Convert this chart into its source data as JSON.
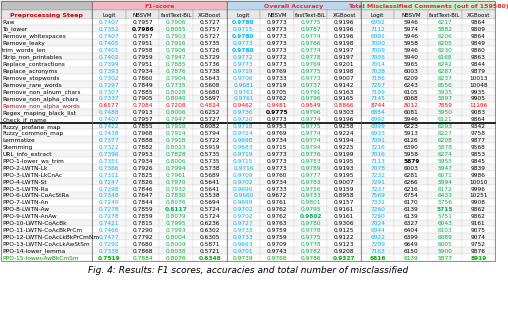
{
  "title": "Fig. 4: Results: F1 scores, accuracies and total number of misclassified",
  "header_groups": [
    {
      "label": "F1-score",
      "color": "#f2b8c6",
      "text_color": "#e03030"
    },
    {
      "label": "Overall Accuracy",
      "color": "#bdd7ee",
      "text_color": "#e03030"
    },
    {
      "label": "Total Misclassified Comments (out of 159580)",
      "color": "#c6efce",
      "text_color": "#e03030"
    }
  ],
  "col_headers": [
    "Logit",
    "NBSVM",
    "fastText-BiL",
    "XGBoost",
    "Logit",
    "NBSVM",
    "fastText-BiL",
    "XGBoost",
    "Logit",
    "NBSVM",
    "fastText-BiL",
    "XGBoost"
  ],
  "row_label": "Preprocessing Steep",
  "row_label_color": "#cc0000",
  "rows": [
    {
      "name": "Raw",
      "highlight": true,
      "values": [
        "0.7407",
        "0.7957",
        "0.7906",
        "0.5727",
        "0.9780",
        "0.9773",
        "0.9775",
        "0.9196",
        "6992",
        "5946",
        "6217",
        "9864"
      ]
    },
    {
      "name": "To_lower",
      "highlight": false,
      "values": [
        "0.7352",
        "0.7986",
        "0.8055",
        "0.5757",
        "0.9715",
        "0.9773",
        "0.9787",
        "0.9196",
        "7112",
        "5974",
        "5882",
        "9809"
      ]
    },
    {
      "name": "Remove_whitespaces",
      "highlight": false,
      "values": [
        "0.7407",
        "0.7957",
        "0.7903",
        "0.5727",
        "0.9780",
        "0.9773",
        "0.9774",
        "0.9196",
        "6992",
        "5946",
        "6206",
        "9864"
      ]
    },
    {
      "name": "Remove_leaky",
      "highlight": false,
      "values": [
        "0.7405",
        "0.7951",
        "0.7916",
        "0.5735",
        "0.9773",
        "0.9773",
        "0.9766",
        "0.9198",
        "7000",
        "5958",
        "6205",
        "9849"
      ]
    },
    {
      "name": "trim_words_len",
      "highlight": false,
      "values": [
        "0.7401",
        "0.7958",
        "0.7906",
        "0.5726",
        "0.9780",
        "0.9773",
        "0.9774",
        "0.9197",
        "7009",
        "5946",
        "6230",
        "9860"
      ]
    },
    {
      "name": "Strip_non_printables",
      "highlight": false,
      "values": [
        "0.7402",
        "0.7959",
        "0.7947",
        "0.5729",
        "0.9772",
        "0.9772",
        "0.9778",
        "0.9197",
        "7005",
        "5940",
        "6168",
        "9863"
      ]
    },
    {
      "name": "Replace_contractions",
      "highlight": false,
      "values": [
        "0.7399",
        "0.7951",
        "0.7885",
        "0.5736",
        "0.9773",
        "0.9773",
        "0.9769",
        "0.9201",
        "7014",
        "5965",
        "6242",
        "9844"
      ]
    },
    {
      "name": "Replace_acronyms",
      "highlight": false,
      "values": [
        "0.7393",
        "0.7934",
        "0.7876",
        "0.5738",
        "0.9719",
        "0.9769",
        "0.9775",
        "0.9198",
        "7038",
        "6003",
        "6287",
        "9879"
      ]
    },
    {
      "name": "Remove_stopwords",
      "highlight": false,
      "values": [
        "0.7302",
        "0.7860",
        "0.7904",
        "0.5643",
        "0.9706",
        "0.9733",
        "0.9773",
        "0.9007",
        "7186",
        "6209",
        "6237",
        "10013"
      ]
    },
    {
      "name": "Remove_rare_words",
      "highlight": false,
      "values": [
        "0.7297",
        "0.7849",
        "0.7735",
        "0.5608",
        "0.9681",
        "0.9719",
        "0.9737",
        "0.9142",
        "7257",
        "6243",
        "6556",
        "10048"
      ]
    },
    {
      "name": "Remove_non_alnum_chars",
      "highlight": false,
      "values": [
        "0.7307",
        "0.7885",
        "0.8028",
        "0.5680",
        "0.9761",
        "0.9705",
        "0.9791",
        "0.9163",
        "7199",
        "6105",
        "5935",
        "9935"
      ]
    },
    {
      "name": "Remove_non_alpha_chars",
      "highlight": false,
      "values": [
        "0.7337",
        "0.7905",
        "0.8040",
        "0.5697",
        "0.9761",
        "0.9762",
        "0.9796",
        "0.9165",
        "7145",
        "6068",
        "5897",
        "9905"
      ]
    },
    {
      "name": "Remove_non_alpha_words",
      "red": true,
      "values": [
        "0.6577",
        "0.7084",
        "0.7208",
        "0.4824",
        "0.9462",
        "0.9481",
        "0.9549",
        "0.8866",
        "8744",
        "8012",
        "7859",
        "11196"
      ]
    },
    {
      "name": "Regex_maping_black_list",
      "highlight": false,
      "values": [
        "0.7488",
        "0.7913",
        "0.8006",
        "0.6252",
        "0.9736",
        "0.9775",
        "0.9796",
        "0.9303",
        "6854",
        "6081",
        "5950",
        "9083"
      ]
    },
    {
      "name": "Check_if_name",
      "highlight": false,
      "thick_border_below": true,
      "values": [
        "0.7407",
        "0.7957",
        "0.7947",
        "0.5727",
        "0.9720",
        "0.9773",
        "0.9774",
        "0.9196",
        "6992",
        "5946",
        "6121",
        "9864"
      ]
    },
    {
      "name": "Fuzzy_profane_map",
      "highlight": false,
      "values": [
        "0.7422",
        "0.7855",
        "0.7910",
        "0.6082",
        "0.9718",
        "0.9753",
        "0.9775",
        "0.9258",
        "6999",
        "6223",
        "6293",
        "9342"
      ]
    },
    {
      "name": "Fuzzy_common_map",
      "highlight": false,
      "values": [
        "0.7438",
        "0.7968",
        "0.7914",
        "0.5794",
        "0.9724",
        "0.9769",
        "0.9774",
        "0.9224",
        "6933",
        "5913",
        "6227",
        "9758"
      ]
    },
    {
      "name": "Lemmatize",
      "highlight": false,
      "values": [
        "0.7377",
        "0.7888",
        "0.7918",
        "0.5722",
        "0.9698",
        "0.9734",
        "0.9774",
        "0.9194",
        "7091",
        "6126",
        "6208",
        "9877"
      ]
    },
    {
      "name": "Stemming",
      "highlight": false,
      "values": [
        "0.7322",
        "0.7882",
        "0.8023",
        "0.5919",
        "0.9683",
        "0.9715",
        "0.9794",
        "0.9225",
        "7216",
        "6390",
        "5878",
        "9568"
      ]
    },
    {
      "name": "URL_info_extract",
      "highlight": false,
      "values": [
        "0.7396",
        "0.7953",
        "0.7828",
        "0.5735",
        "0.9719",
        "0.9773",
        "0.9776",
        "0.9199",
        "7016",
        "5958",
        "6274",
        "9853"
      ]
    },
    {
      "name": "PPO-1-lower_ws_trim",
      "highlight": false,
      "values": [
        "0.7351",
        "0.7934",
        "0.8006",
        "0.5735",
        "0.9715",
        "0.9773",
        "0.9783",
        "0.9195",
        "7113",
        "5879",
        "5955",
        "9845"
      ]
    },
    {
      "name": "PPO-2-LWTN-Lk",
      "highlight": false,
      "values": [
        "0.7366",
        "0.7926",
        "0.7994",
        "0.5738",
        "0.9716",
        "0.9773",
        "0.9789",
        "0.9193",
        "7078",
        "6003",
        "5947",
        "9839"
      ]
    },
    {
      "name": "PPO-3-LWTN-LkCnAc",
      "highlight": false,
      "values": [
        "0.7311",
        "0.7825",
        "0.7961",
        "0.5689",
        "0.9709",
        "0.9760",
        "0.9777",
        "0.9195",
        "7232",
        "6281",
        "6071",
        "9986"
      ]
    },
    {
      "name": "PPO-4-LWTN-St",
      "highlight": false,
      "values": [
        "0.7247",
        "0.7826",
        "0.7970",
        "0.5641",
        "0.9702",
        "0.9734",
        "0.9783",
        "0.9007",
        "7291",
        "6266",
        "5994",
        "10010"
      ]
    },
    {
      "name": "PPO-5-LWTN-Ra",
      "highlight": false,
      "values": [
        "0.7298",
        "0.7846",
        "0.7932",
        "0.5641",
        "0.9690",
        "0.9733",
        "0.9756",
        "0.9159",
        "7237",
        "6216",
        "6172",
        "9996"
      ]
    },
    {
      "name": "PPO-6-LWTN-CoAcStRa",
      "highlight": false,
      "values": [
        "0.7348",
        "0.7647",
        "0.7830",
        "0.5538",
        "0.9660",
        "0.9672",
        "0.9733",
        "0.8958",
        "7569",
        "6754",
        "6433",
        "10251"
      ]
    },
    {
      "name": "PPO-7-LWTN-An",
      "highlight": false,
      "values": [
        "0.7240",
        "0.7844",
        "0.8076",
        "0.5694",
        "0.9699",
        "0.9761",
        "0.9801",
        "0.9157",
        "7331",
        "6170",
        "5756",
        "9908"
      ]
    },
    {
      "name": "PPO-8-LWTN-Aw",
      "highlight": false,
      "values": [
        "0.7278",
        "0.7859",
        "0.8117",
        "0.5724",
        "0.9702",
        "0.9762",
        "0.9795",
        "0.9161",
        "7260",
        "6139",
        "5715",
        "9862"
      ]
    },
    {
      "name": "PPO-9-LWTN-AnAw",
      "highlight": false,
      "values": [
        "0.7278",
        "0.7859",
        "0.8079",
        "0.5724",
        "0.9702",
        "0.9762",
        "0.9802",
        "0.9161",
        "7260",
        "6139",
        "5751",
        "9862"
      ]
    },
    {
      "name": "PPO-10-LWTN-CoAcBk",
      "highlight": false,
      "values": [
        "0.7421",
        "0.7815",
        "0.7995",
        "0.6236",
        "0.9727",
        "0.9763",
        "0.9780",
        "0.9306",
        "7024",
        "6327",
        "6043",
        "9161"
      ]
    },
    {
      "name": "PPO-11-LWTN-CoAcBkPrCm",
      "highlight": false,
      "values": [
        "0.7466",
        "0.7290",
        "0.7993",
        "0.6302",
        "0.9733",
        "0.9759",
        "0.9778",
        "0.9125",
        "6944",
        "6404",
        "6103",
        "9075"
      ]
    },
    {
      "name": "PPO-12-LWTN-CoAcLkBkPrCmNm",
      "highlight": false,
      "values": [
        "0.7477",
        "0.7792",
        "0.8004",
        "0.6305",
        "0.9733",
        "0.9759",
        "0.9775",
        "0.9122",
        "6922",
        "6399",
        "6089",
        "9074"
      ]
    },
    {
      "name": "PPO-13-LWTN-CoAcLkAwStSm",
      "highlight": false,
      "values": [
        "0.7292",
        "0.7680",
        "0.8009",
        "0.5871",
        "0.9693",
        "0.9709",
        "0.9778",
        "0.9123",
        "7299",
        "6649",
        "6005",
        "9752"
      ]
    },
    {
      "name": "PPO-14-lower_lemma",
      "highlight": false,
      "values": [
        "0.7338",
        "0.7868",
        "0.8038",
        "0.5721",
        "0.9701",
        "0.9743",
        "0.9782",
        "0.9208",
        "7163",
        "6150",
        "5900",
        "9876"
      ]
    },
    {
      "name": "PPO-15-lower-AwBkCmSm",
      "green": true,
      "values": [
        "0.7519",
        "0.7884",
        "0.8076",
        "0.6348",
        "0.9739",
        "0.9768",
        "0.9786",
        "0.9327",
        "6816",
        "6139",
        "5877",
        "8919"
      ]
    }
  ]
}
